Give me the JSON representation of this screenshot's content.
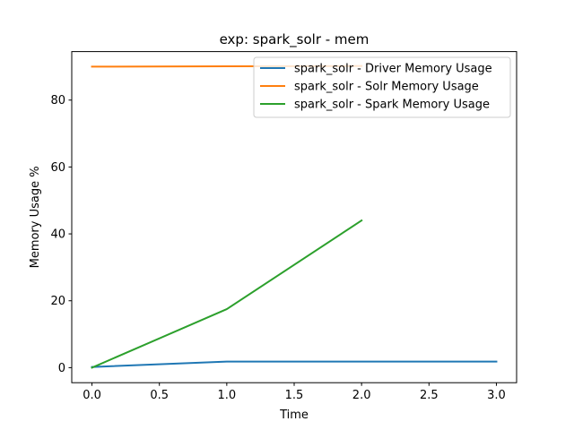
{
  "chart_data": {
    "type": "line",
    "title": "exp: spark_solr - mem",
    "xlabel": "Time",
    "ylabel": "Memory Usage %",
    "xlim": [
      -0.15,
      3.15
    ],
    "ylim": [
      -4.5,
      94.5
    ],
    "xticks": [
      0.0,
      0.5,
      1.0,
      1.5,
      2.0,
      2.5,
      3.0
    ],
    "xtick_labels": [
      "0.0",
      "0.5",
      "1.0",
      "1.5",
      "2.0",
      "2.5",
      "3.0"
    ],
    "yticks": [
      0,
      20,
      40,
      60,
      80
    ],
    "ytick_labels": [
      "0",
      "20",
      "40",
      "60",
      "80"
    ],
    "grid": false,
    "legend_position": "top-right",
    "series": [
      {
        "name": "spark_solr - Driver Memory Usage",
        "color": "#1f77b4",
        "x": [
          0,
          1,
          2,
          3
        ],
        "y": [
          0.2,
          1.8,
          1.8,
          1.8
        ]
      },
      {
        "name": "spark_solr - Solr Memory Usage",
        "color": "#ff7f0e",
        "x": [
          0,
          1,
          2
        ],
        "y": [
          90.0,
          90.1,
          90.2
        ]
      },
      {
        "name": "spark_solr - Spark Memory Usage",
        "color": "#2ca02c",
        "x": [
          0,
          1,
          2
        ],
        "y": [
          0.0,
          17.5,
          44.0
        ]
      }
    ]
  }
}
